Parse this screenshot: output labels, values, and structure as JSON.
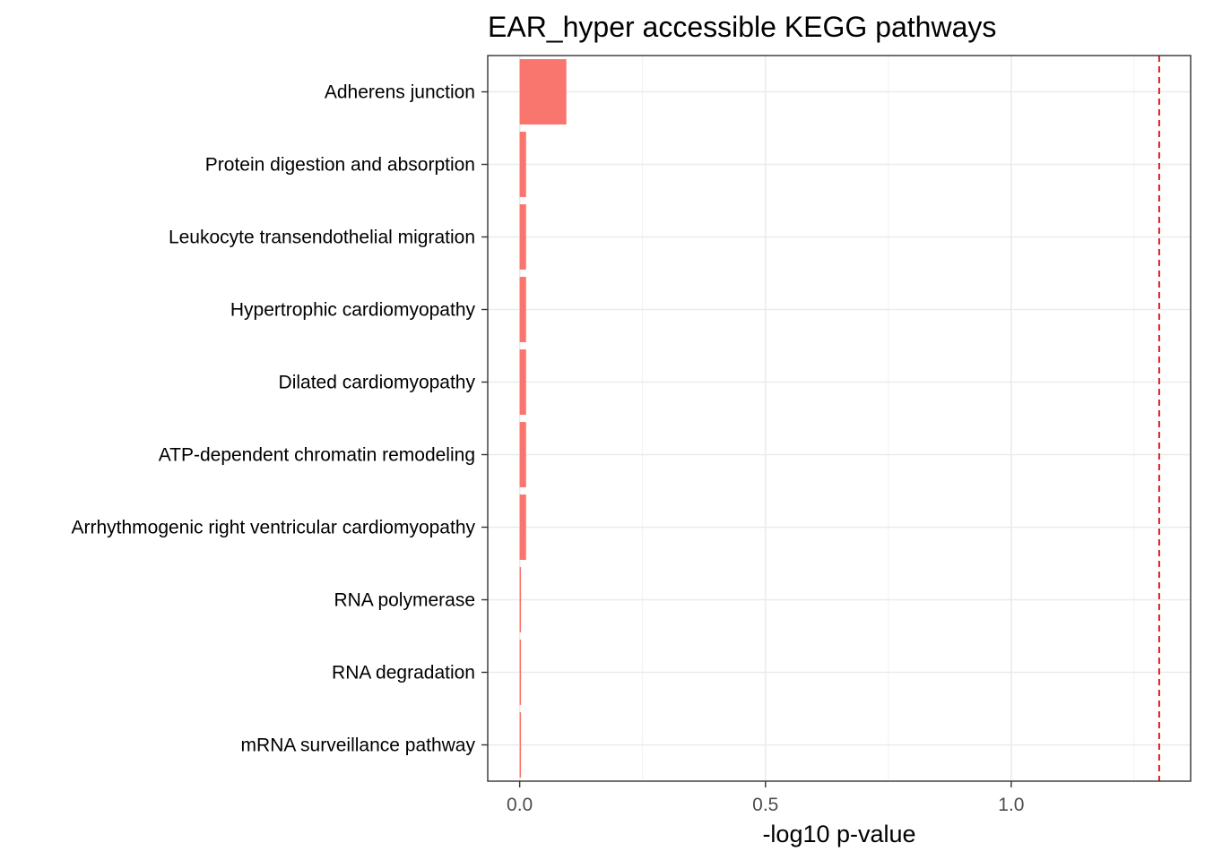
{
  "chart_data": {
    "type": "bar",
    "orientation": "horizontal",
    "title": "EAR_hyper accessible KEGG pathways",
    "xlabel": "-log10 p-value",
    "ylabel": "",
    "categories": [
      "Adherens junction",
      "Protein digestion and absorption",
      "Leukocyte transendothelial migration",
      "Hypertrophic cardiomyopathy",
      "Dilated cardiomyopathy",
      "ATP-dependent chromatin remodeling",
      "Arrhythmogenic right ventricular cardiomyopathy",
      "RNA polymerase",
      "RNA degradation",
      "mRNA surveillance pathway"
    ],
    "values": [
      0.095,
      0.013,
      0.013,
      0.013,
      0.013,
      0.013,
      0.013,
      0.002,
      0.002,
      0.002
    ],
    "xlim": [
      -0.065,
      1.365
    ],
    "xticks": [
      0.0,
      0.5,
      1.0
    ],
    "xtick_labels": [
      "0.0",
      "0.5",
      "1.0"
    ],
    "reference_line": {
      "x": 1.301,
      "style": "dashed",
      "color": "#e41a1c"
    },
    "bar_color": "#f8766d",
    "grid": true,
    "legend": "none"
  }
}
